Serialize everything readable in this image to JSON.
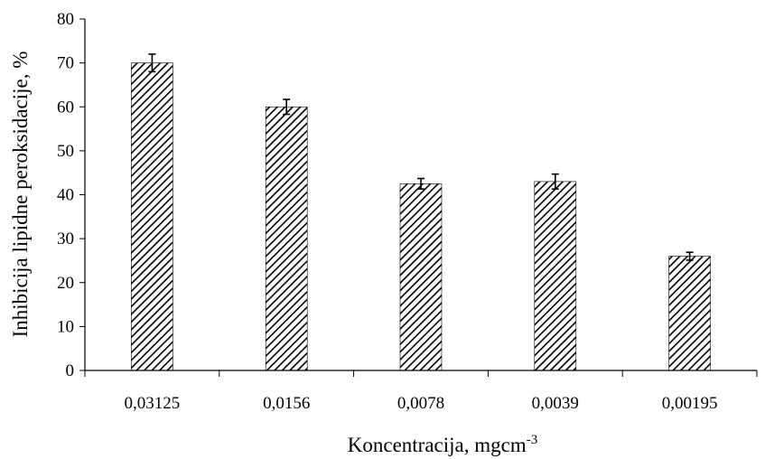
{
  "chart_data": {
    "type": "bar",
    "title": "",
    "xlabel": "Koncentracija, mgcm",
    "xlabel_superscript": "-3",
    "ylabel": "Inhibicija lipidne peroksidacije, %",
    "categories": [
      "0,03125",
      "0,0156",
      "0,0078",
      "0,0039",
      "0,00195"
    ],
    "values": [
      70,
      60,
      42.5,
      43,
      26
    ],
    "error": [
      2,
      1.7,
      1.2,
      1.7,
      0.9
    ],
    "ylim": [
      0,
      80
    ],
    "yticks": [
      0,
      10,
      20,
      30,
      40,
      50,
      60,
      70,
      80
    ],
    "grid": false,
    "legend": "none",
    "bar_pattern": "diagonal-hatch",
    "colors": {
      "bar_fill": "#ffffff",
      "hatch": "#000000",
      "axis": "#000000"
    }
  }
}
